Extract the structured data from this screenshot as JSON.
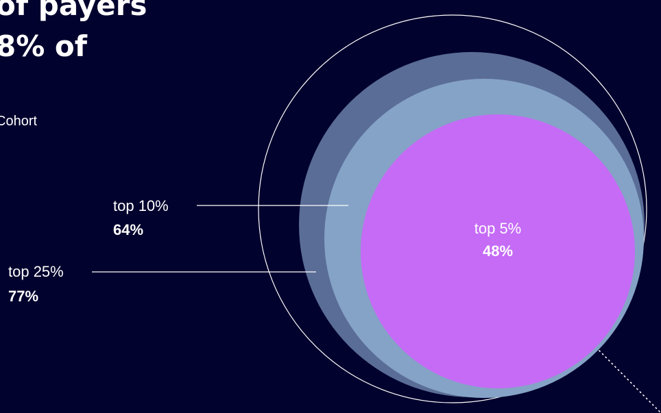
{
  "headline": {
    "line1": "of payers",
    "line2": "8% of"
  },
  "subtitle": "Cohort",
  "colors": {
    "background": "#02022e",
    "outline": "#ffffff",
    "top_25": "#5a6d96",
    "top_10": "#85a3c6",
    "top_5": "#c56bf6"
  },
  "chart_data": {
    "type": "bubble",
    "unit": "%",
    "series": [
      {
        "label": "top 25%",
        "value": 77,
        "value_label": "77%"
      },
      {
        "label": "top 10%",
        "value": 64,
        "value_label": "64%"
      },
      {
        "label": "top 5%",
        "value": 48,
        "value_label": "48%"
      }
    ]
  }
}
